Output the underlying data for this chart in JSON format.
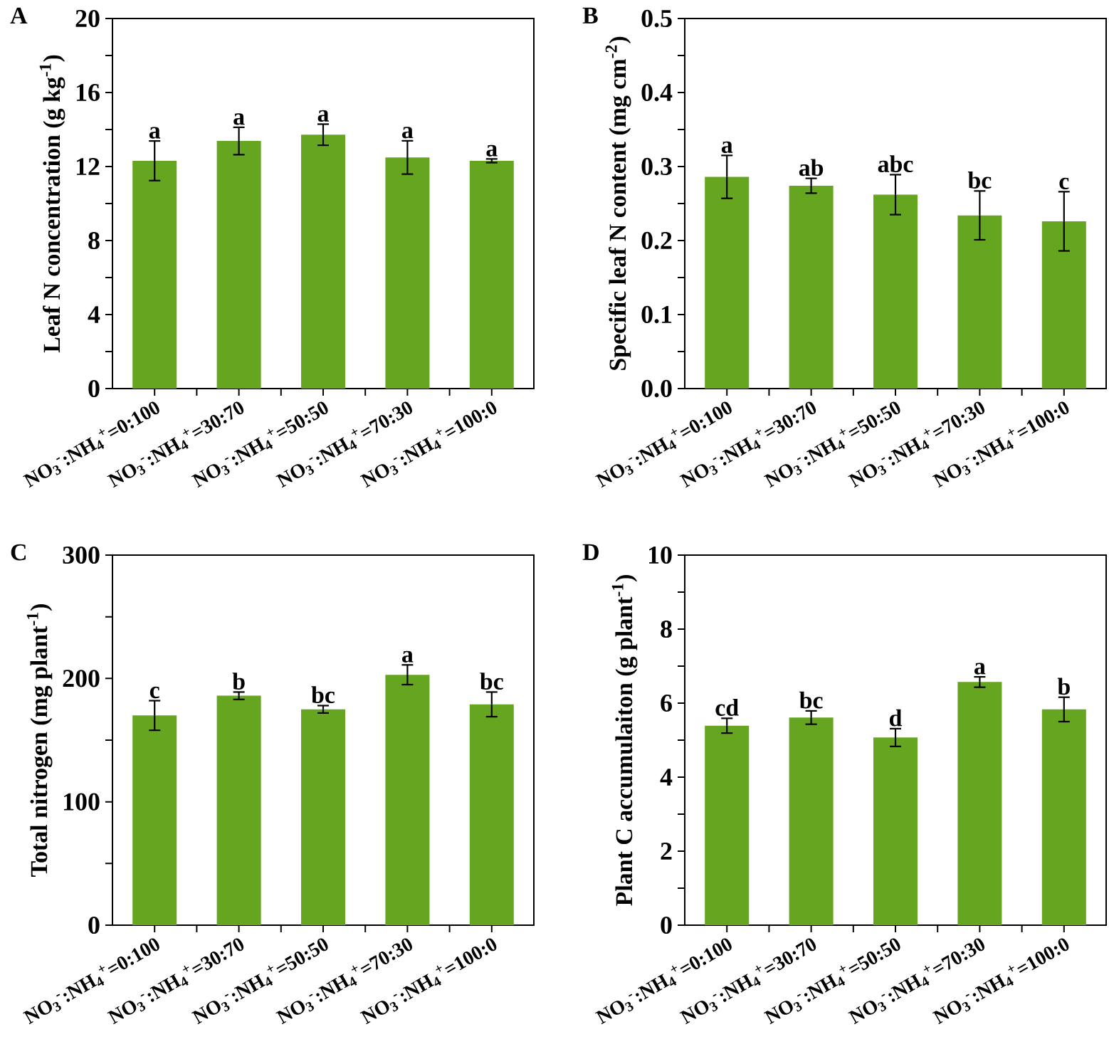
{
  "chart_data": [
    {
      "type": "bar",
      "title": "A",
      "ylabel": "Leaf N concentration (g kg$^{-1}$)",
      "categories": [
        "NO$_{3}$$^{-}$:NH$_{4}$$^{+}$=0:100",
        "NO$_{3}$$^{-}$:NH$_{4}$$^{+}$=30:70",
        "NO$_{3}$$^{-}$:NH$_{4}$$^{+}$=50:50",
        "NO$_{3}$$^{-}$:NH$_{4}$$^{+}$=70:30",
        "NO$_{3}$$^{-}$:NH$_{4}$$^{+}$=100:0"
      ],
      "values": [
        12.31,
        13.38,
        13.72,
        12.49,
        12.31
      ],
      "errors": [
        1.07,
        0.74,
        0.57,
        0.9,
        0.1
      ],
      "value_labels": [
        "a",
        "a",
        "a",
        "a",
        "a"
      ],
      "color": "#65a520",
      "ylim": [
        0,
        20
      ],
      "yticks": [
        0,
        {
          "value": 2,
          "label": null
        },
        4,
        {
          "value": 6,
          "label": null
        },
        8,
        {
          "value": 10,
          "label": null
        },
        12,
        {
          "value": 14,
          "label": null
        },
        16,
        {
          "value": 18,
          "label": null
        },
        20
      ]
    },
    {
      "type": "bar",
      "title": "B",
      "ylabel": "Specific leaf N content (mg cm$^{-2}$)",
      "categories": [
        "NO$_{3}$$^{-}$:NH$_{4}$$^{+}$=0:100",
        "NO$_{3}$$^{-}$:NH$_{4}$$^{+}$=30:70",
        "NO$_{3}$$^{-}$:NH$_{4}$$^{+}$=50:50",
        "NO$_{3}$$^{-}$:NH$_{4}$$^{+}$=70:30",
        "NO$_{3}$$^{-}$:NH$_{4}$$^{+}$=100:0"
      ],
      "values": [
        0.286,
        0.274,
        0.262,
        0.234,
        0.226
      ],
      "errors": [
        0.029,
        0.01,
        0.027,
        0.033,
        0.04
      ],
      "value_labels": [
        "a",
        "ab",
        "abc",
        "bc",
        "c"
      ],
      "color": "#65a520",
      "ylim": [
        0,
        0.5
      ],
      "yticks": [
        {
          "value": 0,
          "label": "0.0"
        },
        {
          "value": 0.05,
          "label": null
        },
        {
          "value": 0.1,
          "label": "0.1"
        },
        {
          "value": 0.15,
          "label": null
        },
        {
          "value": 0.2,
          "label": "0.2"
        },
        {
          "value": 0.25,
          "label": null
        },
        {
          "value": 0.3,
          "label": "0.3"
        },
        {
          "value": 0.35,
          "label": null
        },
        {
          "value": 0.4,
          "label": "0.4"
        },
        {
          "value": 0.45,
          "label": null
        },
        {
          "value": 0.5,
          "label": "0.5"
        }
      ]
    },
    {
      "type": "bar",
      "title": "C",
      "ylabel": "Total nitrogen (mg plant$^{-1}$)",
      "categories": [
        "NO$_{3}$$^{-}$:NH$_{4}$$^{+}$=0:100",
        "NO$_{3}$$^{-}$:NH$_{4}$$^{+}$=30:70",
        "NO$_{3}$$^{-}$:NH$_{4}$$^{+}$=50:50",
        "NO$_{3}$$^{-}$:NH$_{4}$$^{+}$=70:30",
        "NO$_{3}$$^{-}$:NH$_{4}$$^{+}$=100:0"
      ],
      "values": [
        170,
        186,
        175,
        203,
        179
      ],
      "errors": [
        12,
        3,
        3,
        8,
        10
      ],
      "value_labels": [
        "c",
        "b",
        "bc",
        "a",
        "bc"
      ],
      "color": "#65a520",
      "ylim": [
        0,
        300
      ],
      "yticks": [
        0,
        {
          "value": 50,
          "label": null
        },
        100,
        {
          "value": 150,
          "label": null
        },
        200,
        {
          "value": 250,
          "label": null
        },
        300
      ]
    },
    {
      "type": "bar",
      "title": "D",
      "ylabel": "Plant C accumulaiton (g plant$^{-1}$)",
      "categories": [
        "NO$_{3}$$^{-}$:NH$_{4}$$^{+}$=0:100",
        "NO$_{3}$$^{-}$:NH$_{4}$$^{+}$=30:70",
        "NO$_{3}$$^{-}$:NH$_{4}$$^{+}$=50:50",
        "NO$_{3}$$^{-}$:NH$_{4}$$^{+}$=70:30",
        "NO$_{3}$$^{-}$:NH$_{4}$$^{+}$=100:0"
      ],
      "values": [
        5.39,
        5.61,
        5.07,
        6.57,
        5.83
      ],
      "errors": [
        0.2,
        0.18,
        0.24,
        0.14,
        0.33
      ],
      "value_labels": [
        "cd",
        "bc",
        "d",
        "a",
        "b"
      ],
      "color": "#65a520",
      "ylim": [
        0,
        10
      ],
      "yticks": [
        0,
        {
          "value": 1,
          "label": null
        },
        2,
        {
          "value": 3,
          "label": null
        },
        4,
        {
          "value": 5,
          "label": null
        },
        6,
        {
          "value": 7,
          "label": null
        },
        8,
        {
          "value": 9,
          "label": null
        },
        10
      ]
    }
  ]
}
